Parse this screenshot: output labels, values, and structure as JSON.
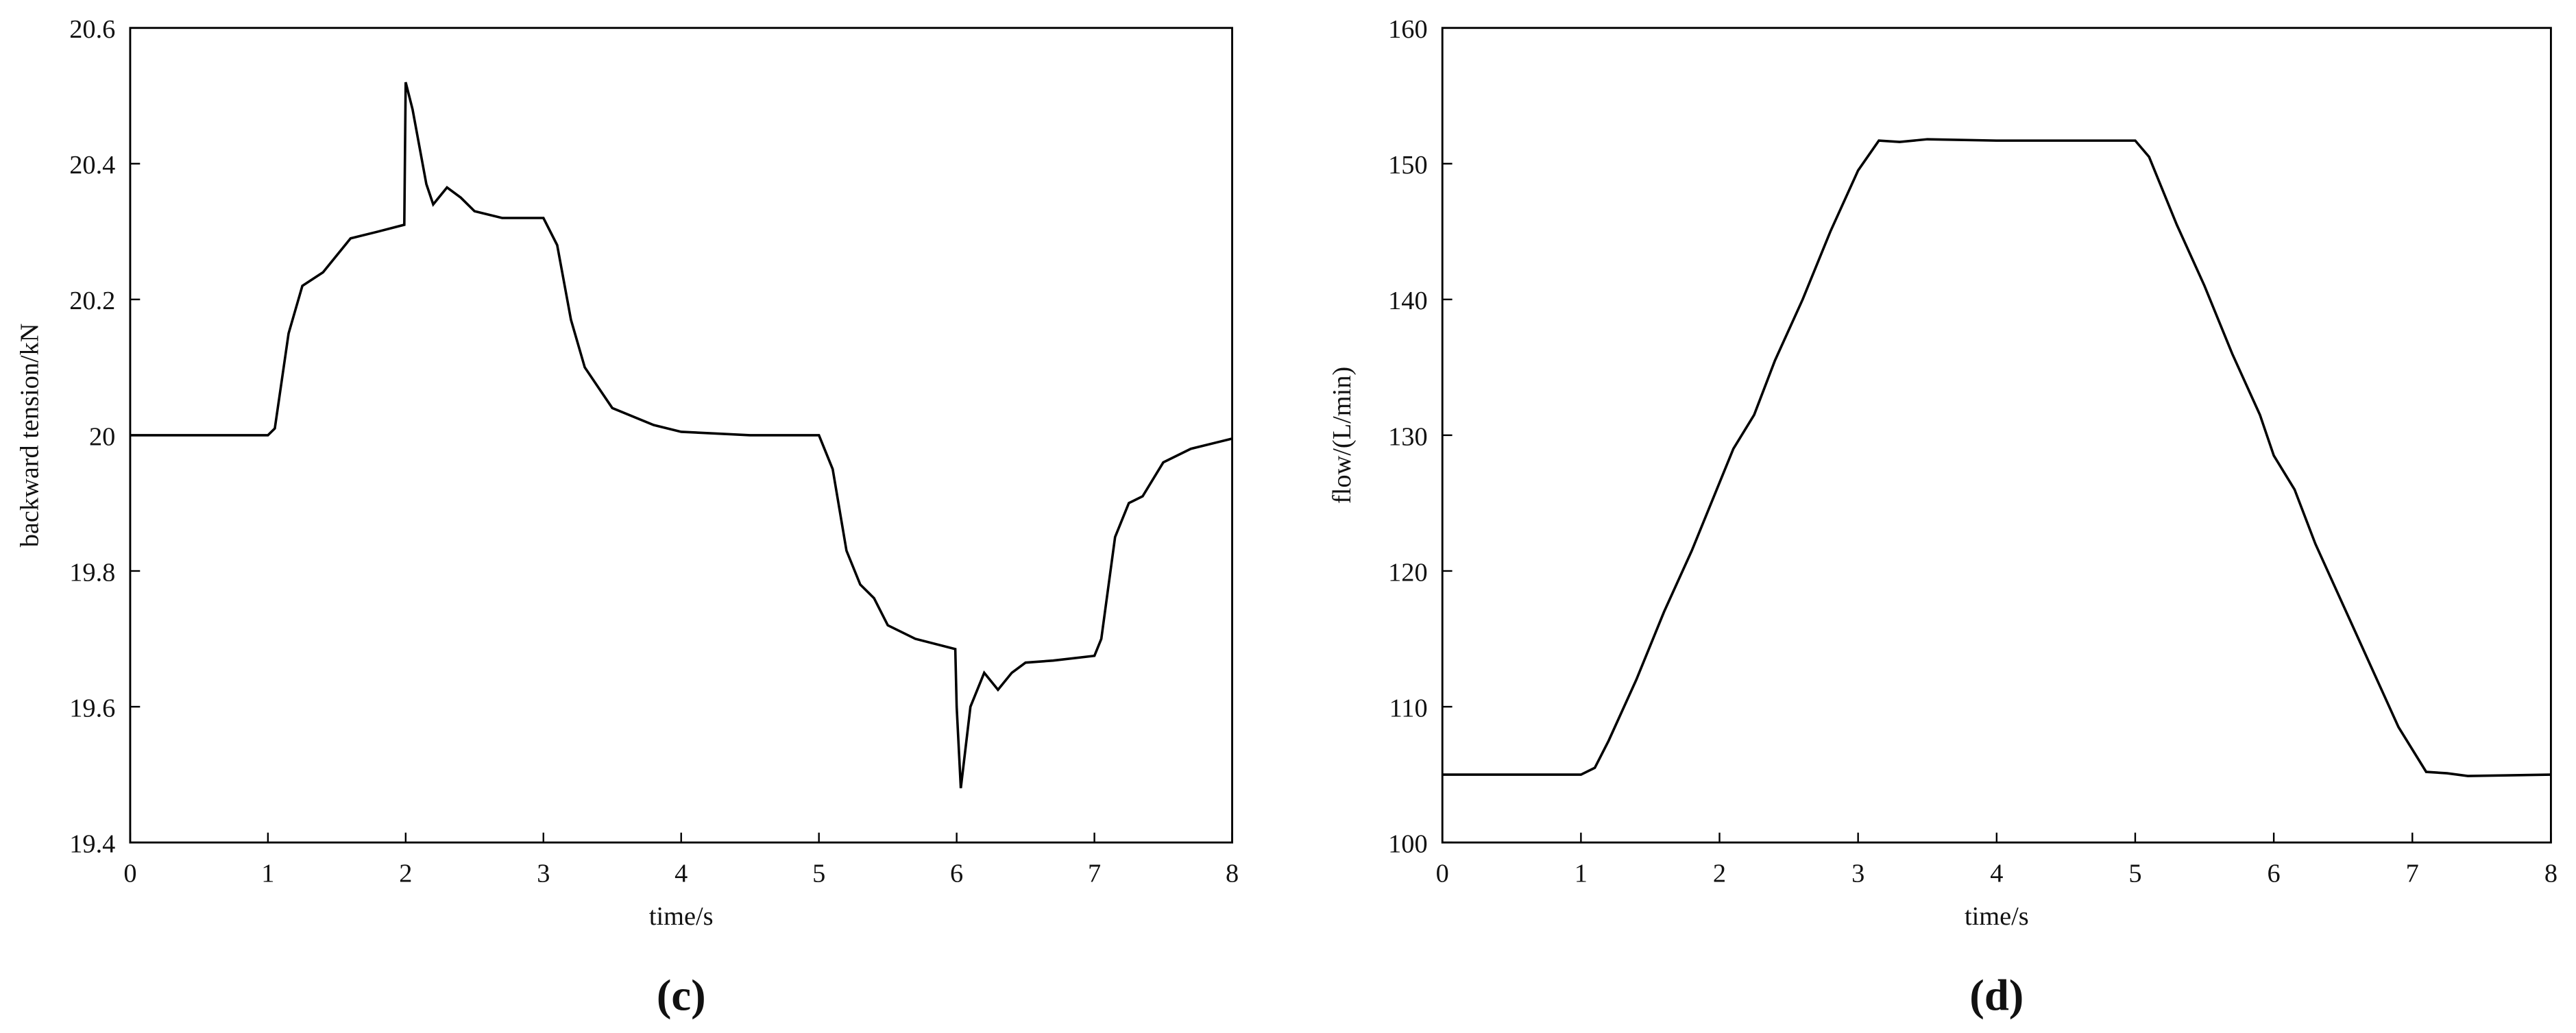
{
  "chart_data": [
    {
      "type": "line",
      "label": "(c)",
      "xlabel": "time/s",
      "ylabel": "backward tension/kN",
      "color": "#000000",
      "x": [
        0,
        0.5,
        1,
        1.05,
        1.15,
        1.25,
        1.4,
        1.6,
        1.8,
        1.99,
        2.0,
        2.05,
        2.15,
        2.2,
        2.3,
        2.4,
        2.5,
        2.7,
        3.0,
        3.1,
        3.2,
        3.3,
        3.4,
        3.5,
        3.8,
        4,
        4.5,
        5.0,
        5.1,
        5.2,
        5.3,
        5.4,
        5.5,
        5.7,
        5.99,
        6.0,
        6.03,
        6.1,
        6.2,
        6.3,
        6.4,
        6.5,
        6.7,
        7.0,
        7.05,
        7.15,
        7.25,
        7.35,
        7.5,
        7.7,
        8
      ],
      "values": [
        20,
        20,
        20,
        20.01,
        20.15,
        20.22,
        20.24,
        20.29,
        20.3,
        20.31,
        20.52,
        20.48,
        20.37,
        20.34,
        20.365,
        20.35,
        20.33,
        20.32,
        20.32,
        20.28,
        20.17,
        20.1,
        20.07,
        20.04,
        20.015,
        20.005,
        20.0,
        20.0,
        19.95,
        19.83,
        19.78,
        19.76,
        19.72,
        19.7,
        19.685,
        19.6,
        19.48,
        19.6,
        19.65,
        19.625,
        19.65,
        19.665,
        19.668,
        19.675,
        19.7,
        19.85,
        19.9,
        19.91,
        19.96,
        19.98,
        19.995
      ],
      "xlim": [
        0,
        8
      ],
      "xticks": [
        0,
        1,
        2,
        3,
        4,
        5,
        6,
        7,
        8
      ],
      "ylim": [
        19.4,
        20.6
      ],
      "yticks": [
        19.4,
        19.6,
        19.8,
        20,
        20.2,
        20.4,
        20.6
      ]
    },
    {
      "type": "line",
      "label": "(d)",
      "xlabel": "time/s",
      "ylabel": "flow/(L/min)",
      "color": "#000000",
      "x": [
        0,
        1,
        1.1,
        1.2,
        1.4,
        1.6,
        1.8,
        2.0,
        2.1,
        2.25,
        2.4,
        2.6,
        2.8,
        3.0,
        3.15,
        3.3,
        3.5,
        4,
        5.0,
        5.1,
        5.3,
        5.5,
        5.7,
        5.9,
        6.0,
        6.15,
        6.3,
        6.5,
        6.7,
        6.9,
        7.1,
        7.25,
        7.4,
        8
      ],
      "values": [
        105,
        105,
        105.5,
        107.5,
        112,
        117,
        121.5,
        126.5,
        129,
        131.5,
        135.5,
        140,
        145,
        149.5,
        151.7,
        151.6,
        151.8,
        151.7,
        151.7,
        150.5,
        145.5,
        141,
        136,
        131.5,
        128.5,
        126,
        122,
        117.5,
        113,
        108.5,
        105.2,
        105.1,
        104.9,
        105
      ],
      "xlim": [
        0,
        8
      ],
      "xticks": [
        0,
        1,
        2,
        3,
        4,
        5,
        6,
        7,
        8
      ],
      "ylim": [
        100,
        160
      ],
      "yticks": [
        100,
        110,
        120,
        130,
        140,
        150,
        160
      ]
    }
  ]
}
